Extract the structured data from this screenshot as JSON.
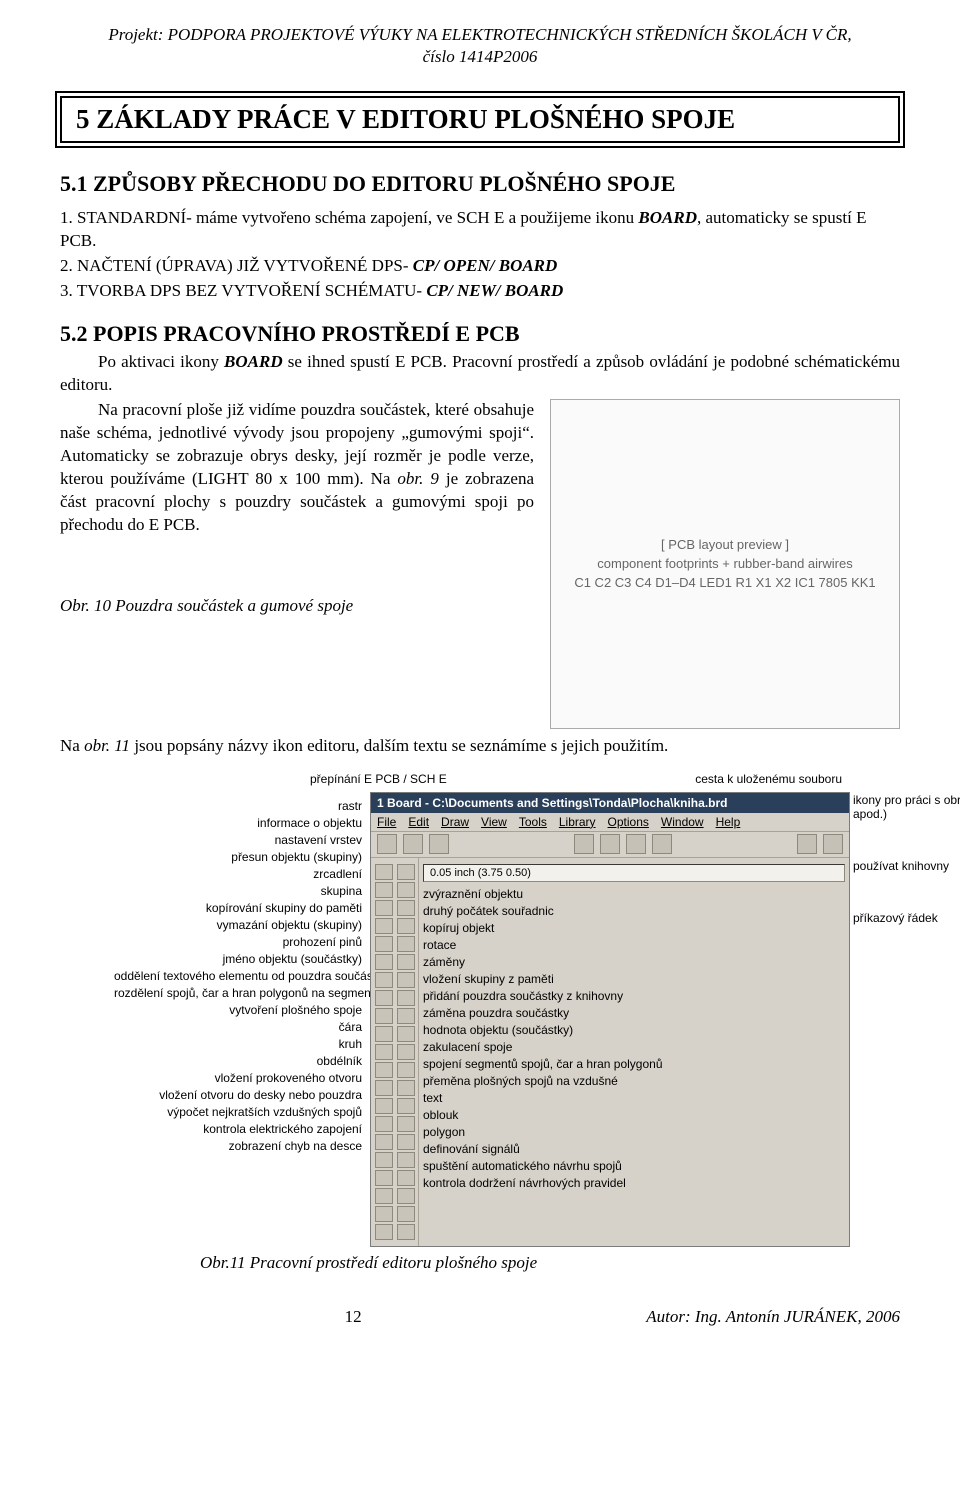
{
  "header": {
    "line1": "Projekt: PODPORA PROJEKTOVÉ VÝUKY NA ELEKTROTECHNICKÝCH STŘEDNÍCH ŠKOLÁCH V ČR,",
    "line2": "číslo 1414P2006"
  },
  "boxed_title": "5 ZÁKLADY PRÁCE V EDITORU PLOŠNÉHO SPOJE",
  "sec51_title": "5.1 ZPŮSOBY PŘECHODU DO EDITORU PLOŠNÉHO SPOJE",
  "list1": {
    "n1_a": "1. STANDARDNÍ- máme vytvořeno schéma zapojení, ve SCH E a použijeme ikonu ",
    "n1_b": "BOARD",
    "n1_c": ", automaticky se spustí E PCB.",
    "n2_a": "2. NAČTENÍ (ÚPRAVA) JIŽ VYTVOŘENÉ DPS- ",
    "n2_b": "CP/ OPEN/ BOARD",
    "n3_a": "3. TVORBA DPS BEZ VYTVOŘENÍ SCHÉMATU- ",
    "n3_b": "CP/ NEW/ BOARD"
  },
  "sec52_title": "5.2 POPIS PRACOVNÍHO PROSTŘEDÍ E PCB",
  "p52": {
    "a": "Po aktivaci ikony ",
    "b": "BOARD",
    "c": " se ihned spustí E PCB. Pracovní prostředí a způsob ovládání je podobné schématickému editoru."
  },
  "p52b": {
    "a": "Na pracovní ploše již vidíme pouzdra součástek, které obsahuje naše schéma, jednotlivé vývody jsou propojeny „gumovými spoji“. Automaticky se zobrazuje obrys desky, její rozměr je podle verze, kterou používáme (LIGHT 80 x 100 mm). Na ",
    "b": "obr. 9",
    "c": " je zobrazena část pracovní plochy s pouzdry součástek a gumovými spoji po přechodu do E PCB."
  },
  "fig10": {
    "caption": "Obr. 10 Pouzdra součástek a gumové spoje",
    "placeholder_lines": [
      "[ PCB layout preview ]",
      "component footprints + rubber-band airwires",
      "C1 C2 C3 C4 D1–D4 LED1 R1 X1 X2 IC1 7805 KK1"
    ]
  },
  "p_after_fig10_a": "Na ",
  "p_after_fig10_b": "obr. 11",
  "p_after_fig10_c": " jsou popsány názvy ikon editoru, dalším textu se seznámíme s jejich použitím.",
  "tool": {
    "top_left": "přepínání E PCB / SCH E",
    "top_right": "cesta k uloženému souboru",
    "titlebar": "1 Board - C:\\Documents and Settings\\Tonda\\Plocha\\kniha.brd",
    "menu": [
      "File",
      "Edit",
      "Draw",
      "View",
      "Tools",
      "Library",
      "Options",
      "Window",
      "Help"
    ],
    "coord": "0.05 inch (3.75 0.50)",
    "left_labels": [
      "rastr",
      "informace o objektu",
      "nastavení vrstev",
      "přesun objektu (skupiny)",
      "zrcadlení",
      "skupina",
      "kopírování skupiny do paměti",
      "vymazání objektu (skupiny)",
      "prohození pinů",
      "jméno objektu (součástky)",
      "oddělení textového elementu od pouzdra součástky",
      "rozdělení spojů, čar a hran polygonů na segmenty",
      "vytvoření plošného spoje",
      "čára",
      "kruh",
      "obdélník",
      "vložení prokoveného otvoru",
      "vložení otvoru do desky nebo pouzdra",
      "výpočet nejkratších vzdušných spojů",
      "kontrola elektrického zapojení",
      "zobrazení chyb na desce"
    ],
    "right_labels": [
      "zvýraznění objektu",
      "druhý počátek souřadnic",
      "kopíruj objekt",
      "rotace",
      "záměny",
      "vložení skupiny z paměti",
      "přidání pouzdra součástky z knihovny",
      "záměna pouzdra součástky",
      "hodnota objektu (součástky)",
      "zakulacení spoje",
      "spojení segmentů spojů, čar a hran polygonů",
      "přeměna plošných spojů na vzdušné",
      "text",
      "oblouk",
      "polygon",
      "definování signálů",
      "spuštění automatického návrhu spojů",
      "kontrola dodržení návrhových pravidel"
    ],
    "side_annot": {
      "zoom": "ikony pro práci s obrazovkou (zoom apod.)",
      "cmdline": "příkazový řádek",
      "libs": "používat knihovny"
    }
  },
  "fig11_caption": "Obr.11 Pracovní prostředí editoru plošného spoje",
  "footer": {
    "page": "12",
    "author": "Autor: Ing. Antonín JURÁNEK, 2006"
  },
  "colors": {
    "titlebar_bg": "#2a3f5a",
    "ui_bg": "#d6d2c9",
    "ui_border": "#a9a297",
    "icon_bg": "#c9c4b9",
    "icon_border": "#8f897d"
  }
}
